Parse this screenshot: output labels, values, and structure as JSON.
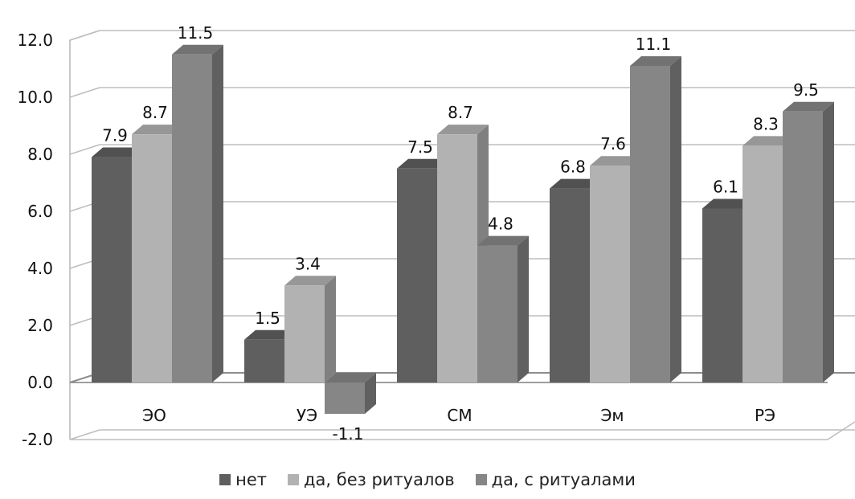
{
  "chart_data": {
    "type": "bar",
    "categories": [
      "ЭО",
      "УЭ",
      "СМ",
      "Эм",
      "РЭ"
    ],
    "series": [
      {
        "name": "нет",
        "values": [
          7.9,
          1.5,
          7.5,
          6.8,
          6.1
        ],
        "color": "#5f5f5f"
      },
      {
        "name": "да, без ритуалов",
        "values": [
          8.7,
          3.4,
          8.7,
          7.6,
          8.3
        ],
        "color": "#b2b2b2"
      },
      {
        "name": "да, с ритуалами",
        "values": [
          11.5,
          -1.1,
          4.8,
          11.1,
          9.5
        ],
        "color": "#868686"
      }
    ],
    "y_ticks": [
      "12.0",
      "10.0",
      "8.0",
      "6.0",
      "4.0",
      "2.0",
      "0.0",
      "-2.0"
    ],
    "ylim": [
      -2,
      12
    ],
    "grid": true,
    "legend_position": "bottom",
    "data_labels": true,
    "style": "3d-clustered-column"
  }
}
